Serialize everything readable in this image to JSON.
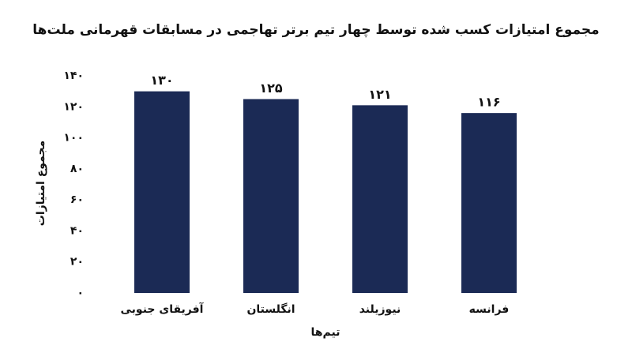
{
  "chart_data": {
    "type": "bar",
    "title": "مجموع امتیازات کسب شده توسط چهار تیم برتر تهاجمی در مسابقات قهرمانی ملت‌ها",
    "x_label": "تیم‌ها",
    "y_label": "مجموع امتیازات",
    "categories": [
      "آفریقای جنوبی",
      "انگلستان",
      "نیوزیلند",
      "فرانسه"
    ],
    "values": [
      130,
      125,
      121,
      116
    ],
    "value_labels": [
      "۱۳۰",
      "۱۲۵",
      "۱۲۱",
      "۱۱۶"
    ],
    "color": "#1b2a55",
    "ylim": [
      0,
      140
    ],
    "yticks": [
      {
        "value": 0,
        "label": "۰"
      },
      {
        "value": 20,
        "label": "۲۰"
      },
      {
        "value": 40,
        "label": "۴۰"
      },
      {
        "value": 60,
        "label": "۶۰"
      },
      {
        "value": 80,
        "label": "۸۰"
      },
      {
        "value": 100,
        "label": "۱۰۰"
      },
      {
        "value": 120,
        "label": "۱۲۰"
      },
      {
        "value": 140,
        "label": "۱۴۰"
      }
    ],
    "grid": false
  }
}
